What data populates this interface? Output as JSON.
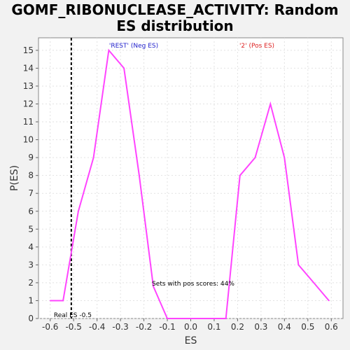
{
  "chart_data": {
    "type": "line",
    "title_line1": "GOMF_RIBONUCLEASE_ACTIVITY: Random",
    "title_line2": "ES distribution",
    "xlabel": "ES",
    "ylabel": "P(ES)",
    "xlim": [
      -0.65,
      0.65
    ],
    "ylim": [
      0,
      15.7
    ],
    "x_ticks": [
      "-0.6",
      "-0.5",
      "-0.4",
      "-0.3",
      "-0.2",
      "-0.1",
      "0.0",
      "0.1",
      "0.2",
      "0.3",
      "0.4",
      "0.5",
      "0.6"
    ],
    "y_ticks": [
      "0",
      "1",
      "2",
      "3",
      "4",
      "5",
      "6",
      "7",
      "8",
      "9",
      "10",
      "11",
      "12",
      "13",
      "14",
      "15"
    ],
    "grid": true,
    "series": [
      {
        "color": "#ff44ff",
        "x": [
          -0.6,
          -0.545,
          -0.48,
          -0.415,
          -0.35,
          -0.285,
          -0.22,
          -0.16,
          -0.1,
          -0.035,
          0.03,
          0.09,
          0.15,
          0.21,
          0.275,
          0.34,
          0.4,
          0.46,
          0.525,
          0.59
        ],
        "y": [
          1,
          1,
          6,
          9,
          15,
          14,
          8,
          1.8,
          0,
          0,
          0,
          0,
          0,
          8,
          9,
          12,
          9,
          3,
          2,
          1
        ]
      }
    ],
    "real_es": {
      "value": -0.51,
      "label": "Real ES -0.5",
      "color": "#000000"
    },
    "annotations": {
      "neg_label": "'REST' (Neg ES)",
      "neg_color": "#2222cc",
      "pos_label": "'2' (Pos ES)",
      "pos_color": "#dd2222",
      "sets_label": "Sets with pos scores: 44%"
    }
  }
}
